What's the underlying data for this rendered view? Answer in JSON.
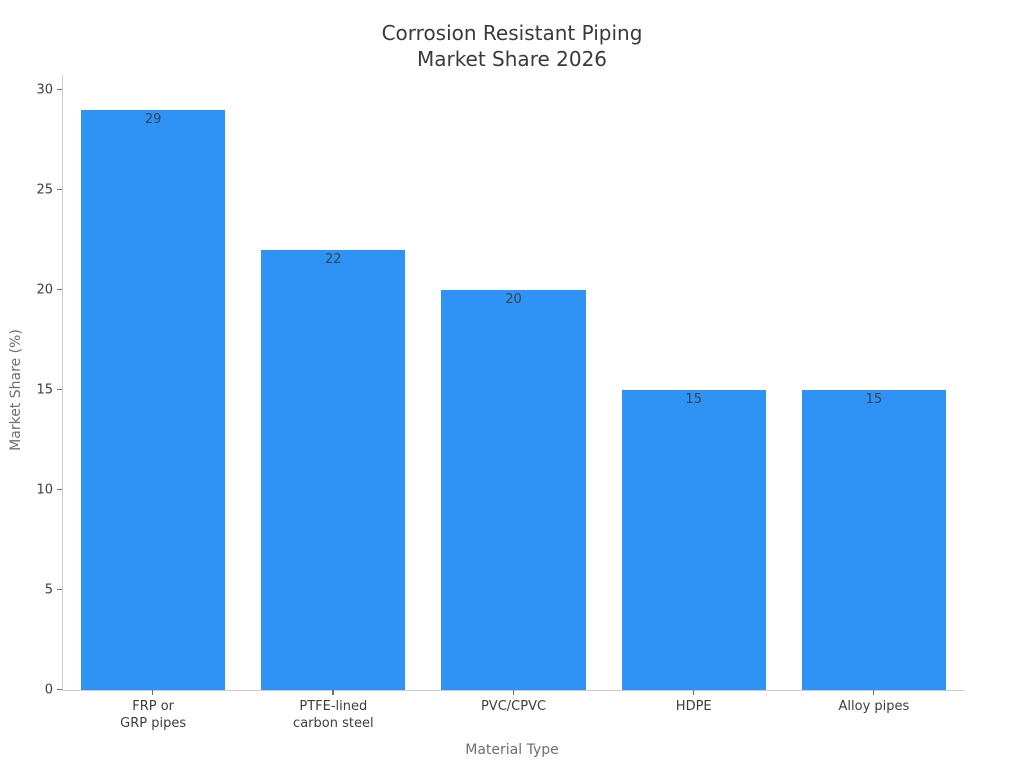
{
  "chart_data": {
    "type": "bar",
    "title": "Corrosion Resistant Piping\nMarket Share 2026",
    "categories": [
      "FRP or\nGRP pipes",
      "PTFE-lined\ncarbon steel",
      "PVC/CPVC",
      "HDPE",
      "Alloy pipes"
    ],
    "values": [
      29,
      22,
      20,
      15,
      15
    ],
    "xlabel": "Material Type",
    "ylabel": "Market Share (%)",
    "ylim": [
      0,
      30
    ],
    "yticks": [
      0,
      5,
      10,
      15,
      20,
      25,
      30
    ],
    "bar_color": "#2e93f5",
    "axis_color": "#cccccc",
    "tick_color": "#707070",
    "grid": false,
    "legend_position": "none",
    "value_labels_inside_bar_top": true
  }
}
